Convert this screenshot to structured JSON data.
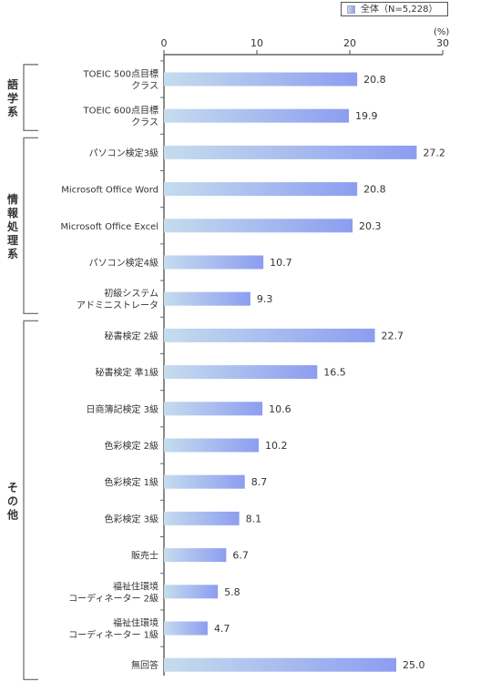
{
  "legend": {
    "label": "全体（N=5,228）"
  },
  "colors": {
    "bar_start": "#c5dcee",
    "bar_end": "#8c9df0",
    "axis": "#666666"
  },
  "chart_data": {
    "type": "bar",
    "orientation": "horizontal",
    "unit_label": "(%)",
    "xlim": [
      0,
      30
    ],
    "ticks": [
      0,
      10,
      20,
      30
    ],
    "groups": [
      {
        "name": [
          "語",
          "学",
          "系"
        ],
        "start": 0,
        "end": 1
      },
      {
        "name": [
          "情",
          "報",
          "処",
          "理",
          "系"
        ],
        "start": 2,
        "end": 6
      },
      {
        "name": [
          "そ",
          "の",
          "他"
        ],
        "start": 7,
        "end": 16
      }
    ],
    "categories": [
      [
        "TOEIC 500点目標",
        "クラス"
      ],
      [
        "TOEIC 600点目標",
        "クラス"
      ],
      [
        "パソコン検定3級"
      ],
      [
        "Microsoft Office Word"
      ],
      [
        "Microsoft Office Excel"
      ],
      [
        "パソコン検定4級"
      ],
      [
        "初級システム",
        "アドミニストレータ"
      ],
      [
        "秘書検定 2級"
      ],
      [
        "秘書検定 準1級"
      ],
      [
        "日商簿記検定 3級"
      ],
      [
        "色彩検定 2級"
      ],
      [
        "色彩検定 1級"
      ],
      [
        "色彩検定 3級"
      ],
      [
        "販売士"
      ],
      [
        "福祉住環境",
        "コーディネーター 2級"
      ],
      [
        "福祉住環境",
        "コーディネーター 1級"
      ],
      [
        "無回答"
      ]
    ],
    "values": [
      20.8,
      19.9,
      27.2,
      20.8,
      20.3,
      10.7,
      9.3,
      22.7,
      16.5,
      10.6,
      10.2,
      8.7,
      8.1,
      6.7,
      5.8,
      4.7,
      25.0
    ],
    "value_labels": [
      "20.8",
      "19.9",
      "27.2",
      "20.8",
      "20.3",
      "10.7",
      "9.3",
      "22.7",
      "16.5",
      "10.6",
      "10.2",
      "8.7",
      "8.1",
      "6.7",
      "5.8",
      "4.7",
      "25.0"
    ]
  }
}
